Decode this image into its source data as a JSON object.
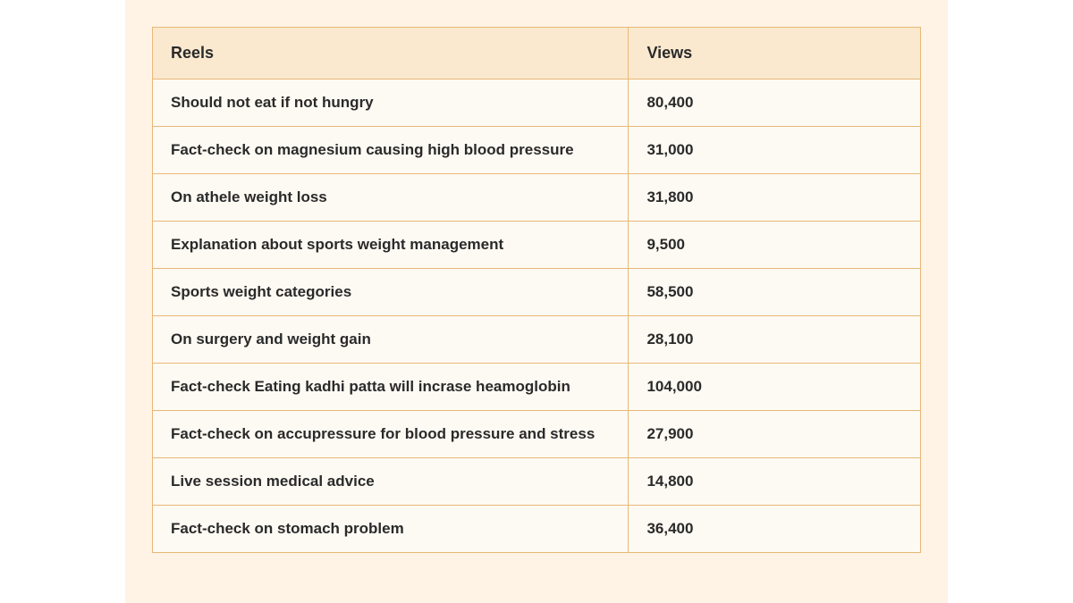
{
  "table": {
    "type": "table",
    "background_color": "#fef3e5",
    "table_bg": "#fdfaf3",
    "header_bg": "#fbe9cf",
    "border_color": "#e8b878",
    "text_color": "#2a2a2a",
    "font_weight": 700,
    "header_fontsize": 18,
    "cell_fontsize": 17,
    "columns": [
      {
        "label": "Reels",
        "width_pct": 62,
        "align": "left"
      },
      {
        "label": "Views",
        "width_pct": 38,
        "align": "left"
      }
    ],
    "rows": [
      {
        "reel": "Should not eat if not hungry",
        "views": "80,400"
      },
      {
        "reel": "Fact-check on magnesium causing high blood pressure",
        "views": "31,000"
      },
      {
        "reel": "On athele weight loss",
        "views": "31,800"
      },
      {
        "reel": "Explanation about sports weight management",
        "views": "9,500"
      },
      {
        "reel": "Sports weight categories",
        "views": "58,500"
      },
      {
        "reel": "On surgery and weight gain",
        "views": "28,100"
      },
      {
        "reel": "Fact-check Eating kadhi patta will incrase heamoglobin",
        "views": "104,000"
      },
      {
        "reel": "Fact-check on accupressure for blood pressure and stress",
        "views": "27,900"
      },
      {
        "reel": "Live session medical advice",
        "views": "14,800"
      },
      {
        "reel": "Fact-check on stomach problem",
        "views": "36,400"
      }
    ]
  }
}
